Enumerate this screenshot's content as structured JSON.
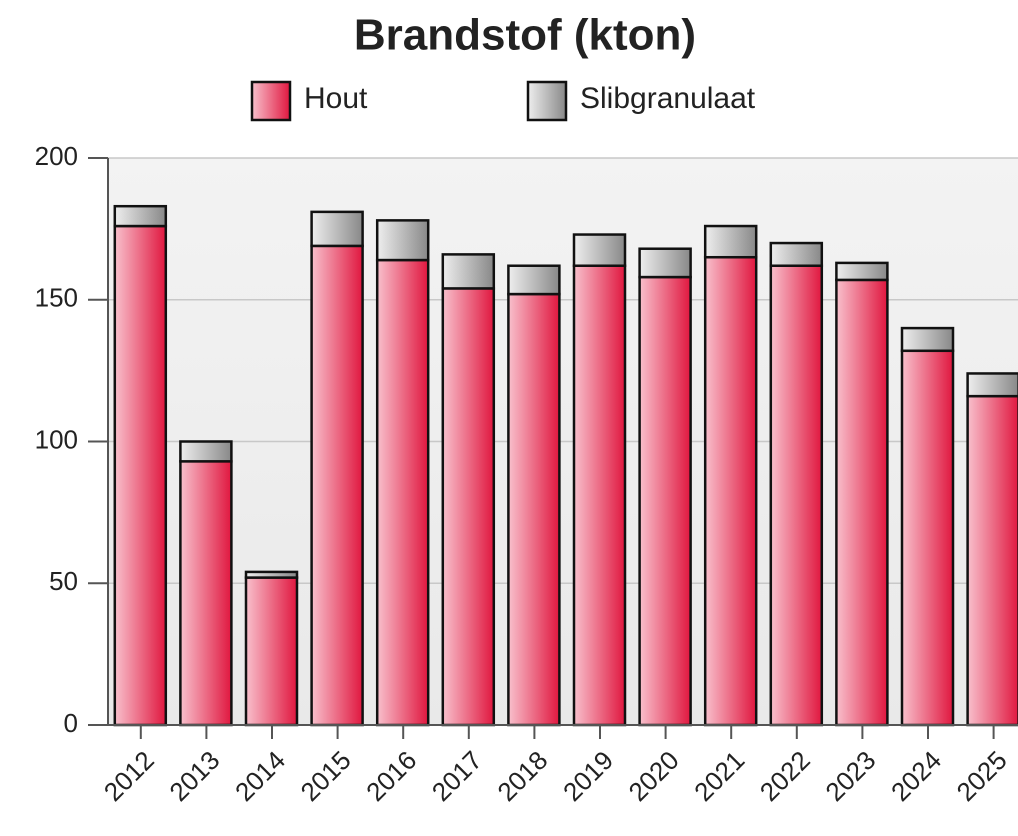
{
  "chart_data": {
    "type": "stacked_bar",
    "title": "Brandstof (kton)",
    "categories": [
      "2012",
      "2013",
      "2014",
      "2015",
      "2016",
      "2017",
      "2018",
      "2019",
      "2020",
      "2021",
      "2022",
      "2023",
      "2024",
      "2025"
    ],
    "series": [
      {
        "name": "Hout",
        "color": "#e0173f",
        "values": [
          176,
          93,
          52,
          169,
          164,
          154,
          152,
          162,
          158,
          165,
          162,
          157,
          132,
          116
        ]
      },
      {
        "name": "Slibgranulaat",
        "color": "#888888",
        "values": [
          7,
          7,
          2,
          12,
          14,
          12,
          10,
          11,
          10,
          11,
          8,
          6,
          8,
          8
        ]
      }
    ],
    "ylim": [
      0,
      200
    ],
    "yticks": [
      0,
      50,
      100,
      150,
      200
    ],
    "grid": true,
    "legend": "top"
  }
}
